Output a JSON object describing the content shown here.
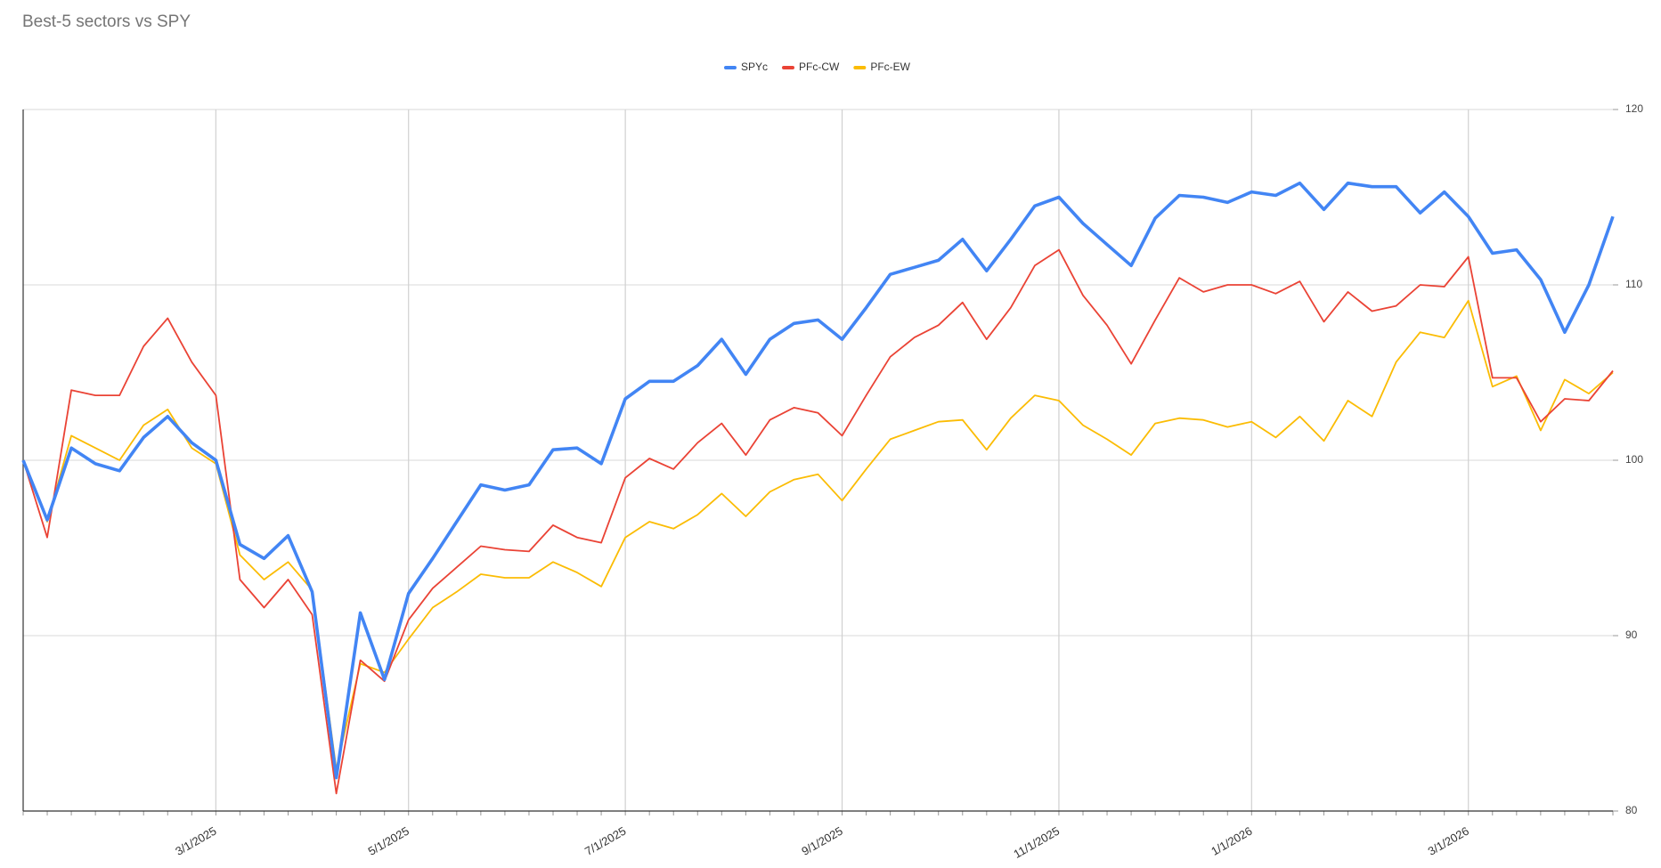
{
  "chart_data": {
    "type": "line",
    "title": "Best-5 sectors vs SPY",
    "categories": [
      null,
      null,
      null,
      null,
      null,
      null,
      null,
      null,
      "3/1/2025",
      null,
      null,
      null,
      null,
      null,
      null,
      null,
      "5/1/2025",
      null,
      null,
      null,
      null,
      null,
      null,
      null,
      null,
      "7/1/2025",
      null,
      null,
      null,
      null,
      null,
      null,
      null,
      null,
      "9/1/2025",
      null,
      null,
      null,
      null,
      null,
      null,
      null,
      null,
      "11/1/2025",
      null,
      null,
      null,
      null,
      null,
      null,
      null,
      "1/1/2026",
      null,
      null,
      null,
      null,
      null,
      null,
      null,
      null,
      "3/1/2026",
      null,
      null,
      null,
      null,
      null,
      null
    ],
    "series": [
      {
        "name": "SPYc",
        "color": "#4285f4",
        "values": [
          100.0,
          96.6,
          100.7,
          99.8,
          99.4,
          101.3,
          102.5,
          101.0,
          100.0,
          95.2,
          94.4,
          95.7,
          92.5,
          81.9,
          91.3,
          87.5,
          92.4,
          94.4,
          96.5,
          98.6,
          98.3,
          98.6,
          100.6,
          100.7,
          99.8,
          103.5,
          104.5,
          104.5,
          105.4,
          106.9,
          104.9,
          106.9,
          107.8,
          108.0,
          106.9,
          108.7,
          110.6,
          111.0,
          111.4,
          112.6,
          110.8,
          112.6,
          114.5,
          115.0,
          113.5,
          112.3,
          111.1,
          113.8,
          115.1,
          115.0,
          114.7,
          115.3,
          115.1,
          115.8,
          114.3,
          115.8,
          115.6,
          115.6,
          114.1,
          115.3,
          113.9,
          111.8,
          112.0,
          110.3,
          107.3,
          110.0,
          113.9
        ]
      },
      {
        "name": "PFc-CW",
        "color": "#ea4335",
        "values": [
          100.0,
          95.6,
          104.0,
          103.7,
          103.7,
          106.5,
          108.1,
          105.6,
          103.7,
          93.2,
          91.6,
          93.2,
          91.2,
          81.0,
          88.6,
          87.4,
          90.9,
          92.7,
          93.9,
          95.1,
          94.9,
          94.8,
          96.3,
          95.6,
          95.3,
          99.0,
          100.1,
          99.5,
          101.0,
          102.1,
          100.3,
          102.3,
          103.0,
          102.7,
          101.4,
          103.7,
          105.9,
          107.0,
          107.7,
          109.0,
          106.9,
          108.7,
          111.1,
          112.0,
          109.4,
          107.7,
          105.5,
          108.0,
          110.4,
          109.6,
          110.0,
          110.0,
          109.5,
          110.2,
          107.9,
          109.6,
          108.5,
          108.8,
          110.0,
          109.9,
          111.6,
          104.7,
          104.7,
          102.2,
          103.5,
          103.4,
          105.1
        ]
      },
      {
        "name": "PFc-EW",
        "color": "#fbbc04",
        "values": [
          100.0,
          96.5,
          101.4,
          100.7,
          100.0,
          102.0,
          102.9,
          100.7,
          99.8,
          94.6,
          93.2,
          94.2,
          92.6,
          82.4,
          88.4,
          87.9,
          89.8,
          91.6,
          92.5,
          93.5,
          93.3,
          93.3,
          94.2,
          93.6,
          92.8,
          95.6,
          96.5,
          96.1,
          96.9,
          98.1,
          96.8,
          98.2,
          98.9,
          99.2,
          97.7,
          99.5,
          101.2,
          101.7,
          102.2,
          102.3,
          100.6,
          102.4,
          103.7,
          103.4,
          102.0,
          101.2,
          100.3,
          102.1,
          102.4,
          102.3,
          101.9,
          102.2,
          101.3,
          102.5,
          101.1,
          103.4,
          102.5,
          105.6,
          107.3,
          107.0,
          109.1,
          104.2,
          104.8,
          101.7,
          104.6,
          103.8,
          105.0
        ]
      }
    ],
    "ylim": [
      80,
      120
    ],
    "yticks": [
      80,
      90,
      100,
      110,
      120
    ],
    "grid": true,
    "legend": "top"
  }
}
